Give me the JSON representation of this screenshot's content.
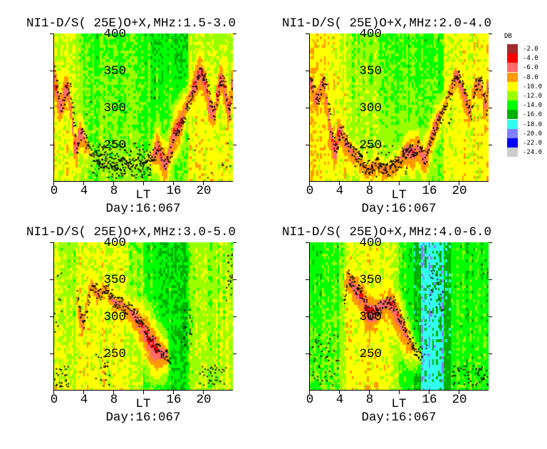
{
  "legend": {
    "unit": "DB",
    "levels": [
      {
        "label": "-2.0",
        "value": -2,
        "color": "#a52a2a"
      },
      {
        "label": "-4.0",
        "value": -4,
        "color": "#ff0000"
      },
      {
        "label": "-6.0",
        "value": -6,
        "color": "#ff6b6b"
      },
      {
        "label": "-8.0",
        "value": -8,
        "color": "#ff9900"
      },
      {
        "label": "-10.0",
        "value": -10,
        "color": "#ffff00"
      },
      {
        "label": "-12.0",
        "value": -12,
        "color": "#99ff00"
      },
      {
        "label": "-14.0",
        "value": -14,
        "color": "#00ff00"
      },
      {
        "label": "-16.0",
        "value": -16,
        "color": "#00b000"
      },
      {
        "label": "-18.0",
        "value": -18,
        "color": "#33ffee"
      },
      {
        "label": "-20.0",
        "value": -20,
        "color": "#8080ff"
      },
      {
        "label": "-22.0",
        "value": -22,
        "color": "#0000ff"
      },
      {
        "label": "-24.0",
        "value": -24,
        "color": "#cccccc"
      }
    ]
  },
  "chart_data": [
    {
      "type": "heatmap",
      "title": "NI1-D/S( 25E)O+X,MHz:1.5-3.0",
      "xlabel": "LT",
      "sublabel": "Day:16:067",
      "xlim": [
        0,
        24
      ],
      "ylim": [
        200,
        400
      ],
      "xticks": [
        {
          "v": 0,
          "label": "0"
        },
        {
          "v": 4,
          "label": "4"
        },
        {
          "v": 8,
          "label": "8"
        },
        {
          "v": 12,
          "label": ""
        },
        {
          "v": 16,
          "label": "16"
        },
        {
          "v": 20,
          "label": "20"
        }
      ],
      "yticks": [
        {
          "v": 400,
          "label": "400"
        },
        {
          "v": 350,
          "label": "350"
        },
        {
          "v": 300,
          "label": "300"
        },
        {
          "v": 250,
          "label": "250"
        }
      ],
      "background_db_top_bottom": [
        [
          -11,
          -10
        ],
        [
          -11,
          -10
        ],
        [
          -11,
          -10
        ],
        [
          -12,
          -11
        ],
        [
          -13.5,
          -12
        ],
        [
          -13.5,
          -12
        ],
        [
          -13.5,
          -12
        ],
        [
          -13.5,
          -12
        ],
        [
          -13.5,
          -12
        ],
        [
          -13.5,
          -12
        ],
        [
          -13.5,
          -12
        ],
        [
          -13.5,
          -12
        ],
        [
          -13.5,
          -12.5
        ],
        [
          -14.5,
          -12.5
        ],
        [
          -14.5,
          -12.5
        ],
        [
          -14.5,
          -12.5
        ],
        [
          -15,
          -12.5
        ],
        [
          -15,
          -12.5
        ],
        [
          -11.5,
          -10
        ],
        [
          -11.5,
          -10
        ],
        [
          -11.5,
          -10
        ],
        [
          -11.5,
          -10
        ],
        [
          -11.5,
          -10
        ],
        [
          -11.5,
          -10
        ]
      ],
      "trace_lt_km_db": [
        [
          0,
          350,
          -5
        ],
        [
          0.5,
          320,
          -5
        ],
        [
          1,
          300,
          -5
        ],
        [
          1.5,
          325,
          -5
        ],
        [
          2,
          330,
          -5
        ],
        [
          2.5,
          290,
          -6
        ],
        [
          3,
          240,
          -5
        ],
        [
          3.5,
          270,
          -6
        ],
        [
          4,
          260,
          -6
        ],
        [
          4.5,
          250,
          -8
        ],
        [
          5,
          238,
          -10
        ],
        [
          6,
          230,
          -12
        ],
        [
          8,
          225,
          -12
        ],
        [
          10,
          225,
          -12
        ],
        [
          12,
          225,
          -12
        ],
        [
          13,
          235,
          -9
        ],
        [
          13.5,
          240,
          -6
        ],
        [
          14,
          250,
          -5
        ],
        [
          14.5,
          232,
          -5
        ],
        [
          15,
          225,
          -5
        ],
        [
          15.5,
          240,
          -6
        ],
        [
          16,
          265,
          -5
        ],
        [
          17,
          280,
          -5
        ],
        [
          18,
          310,
          -7
        ],
        [
          19,
          335,
          -5
        ],
        [
          19.5,
          350,
          -5
        ],
        [
          20,
          345,
          -5
        ],
        [
          20.5,
          330,
          -5
        ],
        [
          21,
          300,
          -5
        ],
        [
          21.5,
          290,
          -6
        ],
        [
          22,
          325,
          -5
        ],
        [
          22.5,
          345,
          -5
        ],
        [
          23,
          320,
          -5
        ],
        [
          23.5,
          290,
          -5
        ],
        [
          24,
          350,
          -5
        ]
      ],
      "scatter_lt_km_count": [
        [
          5,
          13,
          205,
          255,
          160
        ],
        [
          18,
          24,
          205,
          260,
          10
        ],
        [
          4,
          14,
          280,
          330,
          6
        ]
      ]
    },
    {
      "type": "heatmap",
      "title": "NI1-D/S( 25E)O+X,MHz:2.0-4.0",
      "xlabel": "LT",
      "sublabel": "Day:16:067",
      "xlim": [
        0,
        24
      ],
      "ylim": [
        200,
        400
      ],
      "xticks": [
        {
          "v": 0,
          "label": "0"
        },
        {
          "v": 4,
          "label": "4"
        },
        {
          "v": 8,
          "label": "8"
        },
        {
          "v": 12,
          "label": ""
        },
        {
          "v": 16,
          "label": "16"
        },
        {
          "v": 20,
          "label": "20"
        }
      ],
      "yticks": [
        {
          "v": 400,
          "label": "400"
        },
        {
          "v": 350,
          "label": "350"
        },
        {
          "v": 300,
          "label": "300"
        },
        {
          "v": 250,
          "label": "250"
        }
      ],
      "background_db_top_bottom": [
        [
          -9.5,
          -9.5
        ],
        [
          -10,
          -10
        ],
        [
          -9.5,
          -10
        ],
        [
          -10,
          -10
        ],
        [
          -11,
          -10
        ],
        [
          -12.5,
          -11
        ],
        [
          -12.5,
          -11
        ],
        [
          -12.5,
          -11
        ],
        [
          -12.5,
          -11
        ],
        [
          -12.5,
          -11
        ],
        [
          -13.5,
          -12
        ],
        [
          -13.5,
          -12
        ],
        [
          -13.5,
          -12
        ],
        [
          -13.5,
          -12
        ],
        [
          -13.5,
          -12
        ],
        [
          -14,
          -12.5
        ],
        [
          -14,
          -12.5
        ],
        [
          -14,
          -12.5
        ],
        [
          -11,
          -10.5
        ],
        [
          -10.5,
          -10
        ],
        [
          -10.5,
          -10
        ],
        [
          -10.5,
          -10
        ],
        [
          -10,
          -10
        ],
        [
          -10.5,
          -10
        ]
      ],
      "trace_lt_km_db": [
        [
          0,
          340,
          -6
        ],
        [
          0.5,
          325,
          -6
        ],
        [
          1,
          310,
          -6
        ],
        [
          1.5,
          330,
          -6
        ],
        [
          2,
          335,
          -6
        ],
        [
          2.5,
          300,
          -6
        ],
        [
          3,
          260,
          -5
        ],
        [
          3.5,
          240,
          -5
        ],
        [
          4,
          275,
          -5
        ],
        [
          4.5,
          265,
          -6
        ],
        [
          5,
          250,
          -6
        ],
        [
          6,
          240,
          -7
        ],
        [
          7,
          225,
          -7
        ],
        [
          8,
          215,
          -7
        ],
        [
          9,
          225,
          -7
        ],
        [
          10,
          215,
          -7
        ],
        [
          11,
          220,
          -7
        ],
        [
          12,
          228,
          -7
        ],
        [
          13,
          245,
          -6
        ],
        [
          14,
          240,
          -5
        ],
        [
          14.5,
          250,
          -6
        ],
        [
          15,
          238,
          -6
        ],
        [
          15.5,
          230,
          -5
        ],
        [
          16,
          250,
          -6
        ],
        [
          17,
          280,
          -6
        ],
        [
          18,
          300,
          -8
        ],
        [
          19,
          330,
          -7
        ],
        [
          19.5,
          345,
          -6
        ],
        [
          20,
          340,
          -6
        ],
        [
          21,
          310,
          -6
        ],
        [
          21.5,
          290,
          -6
        ],
        [
          22,
          330,
          -7
        ],
        [
          23,
          335,
          -6
        ],
        [
          23.5,
          295,
          -6
        ],
        [
          24,
          340,
          -6
        ]
      ],
      "scatter_lt_km_count": [
        [
          6,
          13,
          205,
          250,
          60
        ],
        [
          17,
          19,
          270,
          300,
          8
        ]
      ]
    },
    {
      "type": "heatmap",
      "title": "NI1-D/S( 25E)O+X,MHz:3.0-5.0",
      "xlabel": "LT",
      "sublabel": "Day:16:067",
      "xlim": [
        0,
        24
      ],
      "ylim": [
        200,
        400
      ],
      "xticks": [
        {
          "v": 0,
          "label": "0"
        },
        {
          "v": 4,
          "label": "4"
        },
        {
          "v": 8,
          "label": "8"
        },
        {
          "v": 12,
          "label": ""
        },
        {
          "v": 16,
          "label": "16"
        },
        {
          "v": 20,
          "label": "20"
        }
      ],
      "yticks": [
        {
          "v": 400,
          "label": "400"
        },
        {
          "v": 350,
          "label": "350"
        },
        {
          "v": 300,
          "label": "300"
        },
        {
          "v": 250,
          "label": "250"
        }
      ],
      "background_db_top_bottom": [
        [
          -11,
          -10.5
        ],
        [
          -12,
          -11
        ],
        [
          -12,
          -11
        ],
        [
          -10.5,
          -10
        ],
        [
          -10.5,
          -10
        ],
        [
          -10.5,
          -10
        ],
        [
          -10.5,
          -10
        ],
        [
          -10.5,
          -10
        ],
        [
          -10.5,
          -10
        ],
        [
          -10.5,
          -10
        ],
        [
          -12.5,
          -11
        ],
        [
          -12.5,
          -11
        ],
        [
          -14,
          -13
        ],
        [
          -14,
          -13
        ],
        [
          -15,
          -14
        ],
        [
          -15,
          -14
        ],
        [
          -15.5,
          -15
        ],
        [
          -15.5,
          -15
        ],
        [
          -13,
          -12.5
        ],
        [
          -12,
          -11.5
        ],
        [
          -12,
          -11.5
        ],
        [
          -12,
          -11.5
        ],
        [
          -12,
          -11.5
        ],
        [
          -11.5,
          -11
        ]
      ],
      "trace_lt_km_db": [
        [
          3,
          330,
          -9
        ],
        [
          3.5,
          300,
          -7
        ],
        [
          4,
          290,
          -6
        ],
        [
          4.5,
          320,
          -8
        ],
        [
          5,
          345,
          -7
        ],
        [
          6,
          330,
          -7
        ],
        [
          7,
          340,
          -8
        ],
        [
          8,
          320,
          -7
        ],
        [
          9,
          318,
          -7
        ],
        [
          10,
          310,
          -7
        ],
        [
          11,
          300,
          -6
        ],
        [
          12,
          285,
          -5
        ],
        [
          13,
          268,
          -4
        ],
        [
          13.5,
          262,
          -4
        ],
        [
          14,
          255,
          -5
        ],
        [
          15,
          250,
          -6
        ],
        [
          15.5,
          245,
          -9
        ]
      ],
      "scatter_lt_km_count": [
        [
          0,
          2,
          205,
          235,
          25
        ],
        [
          19.5,
          23,
          208,
          235,
          35
        ],
        [
          17,
          18.5,
          255,
          310,
          25
        ],
        [
          23,
          24,
          320,
          385,
          25
        ],
        [
          5.5,
          7.5,
          205,
          250,
          20
        ],
        [
          0,
          1,
          280,
          380,
          10
        ]
      ]
    },
    {
      "type": "heatmap",
      "title": "NI1-D/S( 25E)O+X,MHz:4.0-6.0",
      "xlabel": "LT",
      "sublabel": "Day:16:067",
      "xlim": [
        0,
        24
      ],
      "ylim": [
        200,
        400
      ],
      "xticks": [
        {
          "v": 0,
          "label": "0"
        },
        {
          "v": 4,
          "label": "4"
        },
        {
          "v": 8,
          "label": "8"
        },
        {
          "v": 12,
          "label": ""
        },
        {
          "v": 16,
          "label": "16"
        },
        {
          "v": 20,
          "label": "20"
        }
      ],
      "yticks": [
        {
          "v": 400,
          "label": "400"
        },
        {
          "v": 350,
          "label": "350"
        },
        {
          "v": 300,
          "label": "300"
        },
        {
          "v": 250,
          "label": "250"
        }
      ],
      "background_db_top_bottom": [
        [
          -14.5,
          -13
        ],
        [
          -14.5,
          -13
        ],
        [
          -13.5,
          -12.5
        ],
        [
          -13.5,
          -12.5
        ],
        [
          -12,
          -11
        ],
        [
          -10.5,
          -10
        ],
        [
          -10.5,
          -10
        ],
        [
          -10.5,
          -10
        ],
        [
          -10.5,
          -10
        ],
        [
          -10.5,
          -10
        ],
        [
          -10.5,
          -10
        ],
        [
          -12,
          -12
        ],
        [
          -13.5,
          -13.5
        ],
        [
          -14.5,
          -14.5
        ],
        [
          -16,
          -16
        ],
        [
          -18,
          -18
        ],
        [
          -18,
          -18
        ],
        [
          -18,
          -18
        ],
        [
          -16,
          -16
        ],
        [
          -14,
          -13.5
        ],
        [
          -14,
          -13.5
        ],
        [
          -14,
          -13.5
        ],
        [
          -14,
          -13.5
        ],
        [
          -14,
          -13.5
        ]
      ],
      "trace_lt_km_db": [
        [
          4.5,
          320,
          -9
        ],
        [
          5,
          355,
          -7
        ],
        [
          6,
          340,
          -5
        ],
        [
          7,
          330,
          -5
        ],
        [
          8,
          305,
          -4
        ],
        [
          9,
          310,
          -5
        ],
        [
          10,
          318,
          -6
        ],
        [
          11,
          320,
          -5
        ],
        [
          12,
          300,
          -5
        ],
        [
          13,
          275,
          -6
        ],
        [
          14,
          258,
          -8
        ],
        [
          15,
          248,
          -11
        ]
      ],
      "scatter_lt_km_count": [
        [
          0,
          4,
          208,
          280,
          45
        ],
        [
          13,
          16,
          240,
          300,
          15
        ],
        [
          16,
          18,
          300,
          365,
          25
        ],
        [
          19,
          24,
          208,
          235,
          55
        ],
        [
          23,
          24,
          350,
          380,
          4
        ]
      ]
    }
  ]
}
